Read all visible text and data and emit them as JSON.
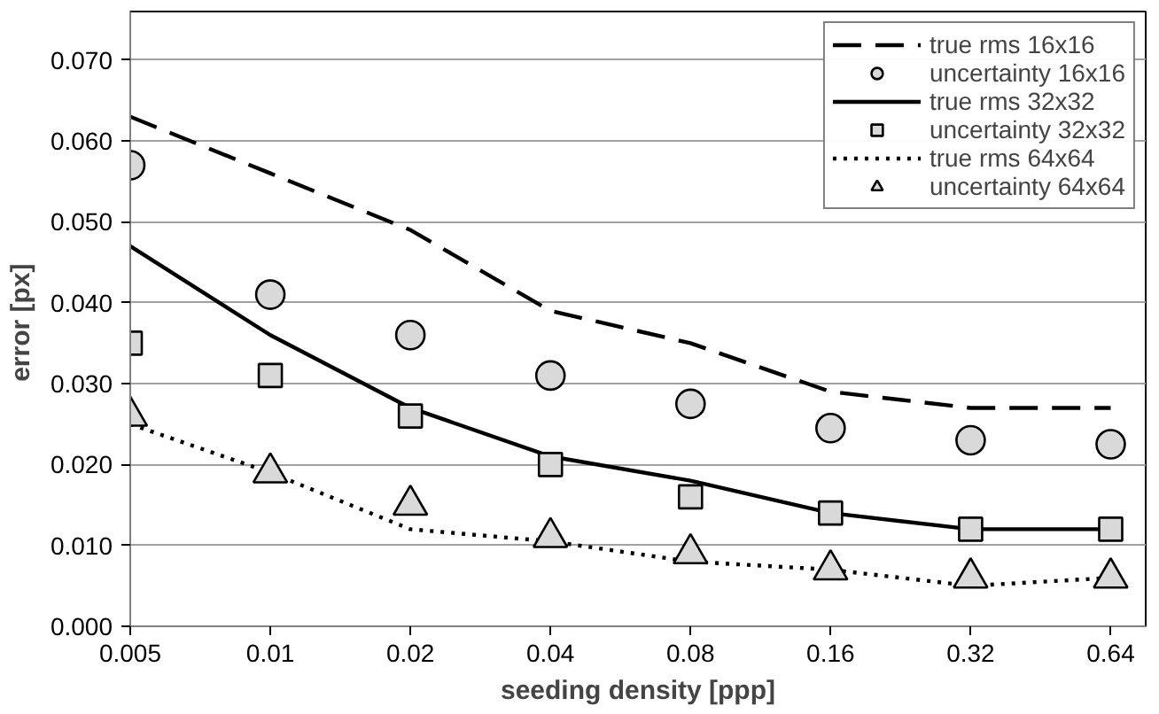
{
  "chart_data": {
    "type": "line",
    "xlabel": "seeding density [ppp]",
    "ylabel": "error  [px]",
    "categories": [
      "0.005",
      "0.01",
      "0.02",
      "0.04",
      "0.08",
      "0.16",
      "0.32",
      "0.64"
    ],
    "ylim": [
      0,
      0.076
    ],
    "yticks": [
      {
        "value": 0,
        "label": "0.000"
      },
      {
        "value": 0.01,
        "label": "0.010"
      },
      {
        "value": 0.02,
        "label": "0.020"
      },
      {
        "value": 0.03,
        "label": "0.030"
      },
      {
        "value": 0.04,
        "label": "0.040"
      },
      {
        "value": 0.05,
        "label": "0.050"
      },
      {
        "value": 0.06,
        "label": "0.060"
      },
      {
        "value": 0.07,
        "label": "0.070"
      }
    ],
    "grid": "y",
    "legend": "top right",
    "series": [
      {
        "name": "true rms 16x16",
        "line_style": "dashed",
        "color": "#000000",
        "values": [
          0.063,
          0.056,
          0.049,
          0.039,
          0.035,
          0.029,
          0.027,
          0.027
        ]
      },
      {
        "name": "uncertainty 16x16",
        "type": "scatter",
        "marker": "circle",
        "color": "#d9d9d9",
        "values": [
          0.057,
          0.041,
          0.036,
          0.031,
          0.0275,
          0.0245,
          0.023,
          0.0225
        ]
      },
      {
        "name": "true rms 32x32",
        "line_style": "solid",
        "color": "#000000",
        "values": [
          0.047,
          0.036,
          0.027,
          0.021,
          0.018,
          0.014,
          0.012,
          0.012
        ]
      },
      {
        "name": "uncertainty 32x32",
        "type": "scatter",
        "marker": "square",
        "color": "#d9d9d9",
        "values": [
          0.035,
          0.031,
          0.026,
          0.02,
          0.016,
          0.014,
          0.012,
          0.012
        ]
      },
      {
        "name": "true rms 64x64",
        "line_style": "dotted",
        "color": "#000000",
        "values": [
          0.025,
          0.019,
          0.012,
          0.0105,
          0.008,
          0.007,
          0.005,
          0.006
        ]
      },
      {
        "name": "uncertainty 64x64",
        "type": "scatter",
        "marker": "triangle",
        "color": "#d9d9d9",
        "values": [
          0.026,
          0.019,
          0.015,
          0.011,
          0.009,
          0.007,
          0.006,
          0.006
        ]
      }
    ]
  }
}
